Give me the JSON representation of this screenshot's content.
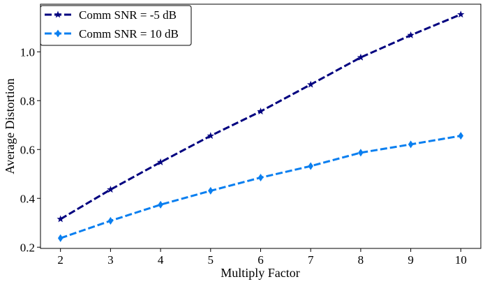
{
  "chart_data": {
    "type": "line",
    "title": "",
    "xlabel": "Multiply Factor",
    "ylabel": "Average Distortion",
    "xlim": [
      1.6,
      10.4
    ],
    "ylim": [
      0.195,
      1.195
    ],
    "xticks": [
      2,
      3,
      4,
      5,
      6,
      7,
      8,
      9,
      10
    ],
    "yticks": [
      0.2,
      0.4,
      0.6,
      0.8,
      1.0
    ],
    "ytick_labels": [
      "0.2",
      "0.4",
      "0.6",
      "0.8",
      "1.0"
    ],
    "grid": false,
    "legend_position": "top-left",
    "x": [
      2,
      3,
      4,
      5,
      6,
      7,
      8,
      9,
      10
    ],
    "series": [
      {
        "name": "Comm SNR = -5 dB",
        "color": "#00007f",
        "marker": "star",
        "linestyle": "dashed",
        "values": [
          0.315,
          0.436,
          0.548,
          0.656,
          0.756,
          0.866,
          0.977,
          1.068,
          1.153
        ]
      },
      {
        "name": "Comm SNR = 10 dB",
        "color": "#0a7ff0",
        "marker": "diamond",
        "linestyle": "dashed",
        "values": [
          0.237,
          0.308,
          0.374,
          0.431,
          0.485,
          0.532,
          0.587,
          0.621,
          0.656
        ]
      }
    ]
  }
}
